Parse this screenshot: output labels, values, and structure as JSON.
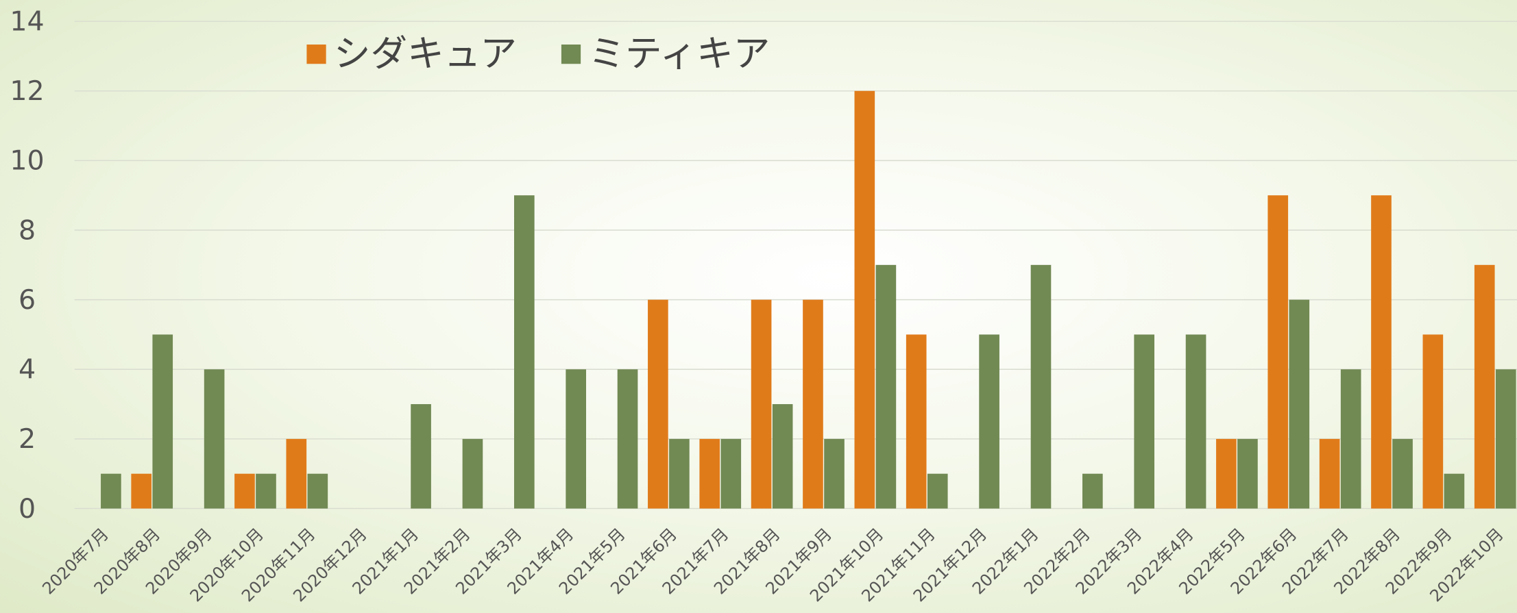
{
  "chart_data": {
    "type": "bar",
    "categories": [
      "2020年7月",
      "2020年8月",
      "2020年9月",
      "2020年10月",
      "2020年11月",
      "2020年12月",
      "2021年1月",
      "2021年2月",
      "2021年3月",
      "2021年4月",
      "2021年5月",
      "2021年6月",
      "2021年7月",
      "2021年8月",
      "2021年9月",
      "2021年10月",
      "2021年11月",
      "2021年12月",
      "2022年1月",
      "2022年2月",
      "2022年3月",
      "2022年4月",
      "2022年5月",
      "2022年6月",
      "2022年7月",
      "2022年8月",
      "2022年9月",
      "2022年10月"
    ],
    "series": [
      {
        "name": "シダキュア",
        "color": "#e07b1a",
        "values": [
          0,
          1,
          0,
          1,
          2,
          0,
          0,
          0,
          0,
          0,
          0,
          6,
          2,
          6,
          6,
          12,
          5,
          0,
          0,
          0,
          0,
          0,
          2,
          9,
          2,
          9,
          5,
          7
        ]
      },
      {
        "name": "ミティキア",
        "color": "#718953",
        "values": [
          1,
          5,
          4,
          1,
          1,
          0,
          3,
          2,
          9,
          4,
          4,
          2,
          2,
          3,
          2,
          7,
          1,
          5,
          7,
          1,
          5,
          5,
          2,
          6,
          4,
          2,
          1,
          4
        ]
      }
    ],
    "ylim": [
      0,
      14
    ],
    "yticks": [
      0,
      2,
      4,
      6,
      8,
      10,
      12,
      14
    ],
    "grid": true,
    "legend": "top"
  }
}
